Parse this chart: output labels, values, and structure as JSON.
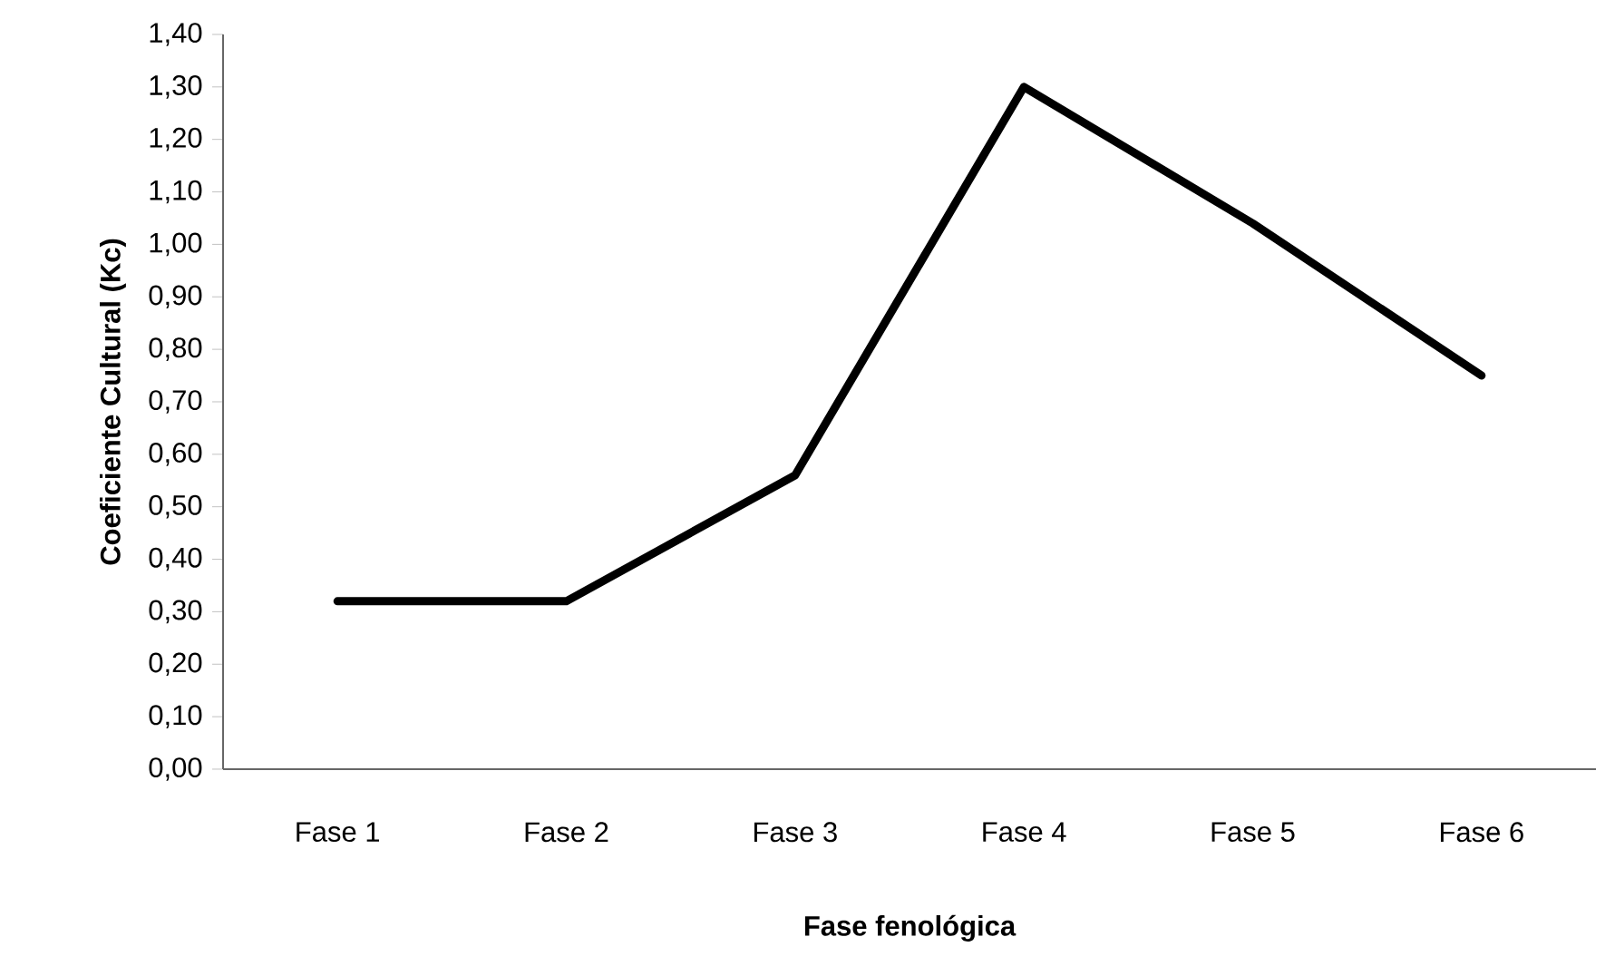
{
  "chart_data": {
    "type": "line",
    "xlabel": "Fase fenológica",
    "ylabel": "Coeficiente Cultural (Kc)",
    "categories": [
      "Fase 1",
      "Fase 2",
      "Fase 3",
      "Fase 4",
      "Fase 5",
      "Fase 6"
    ],
    "series": [
      {
        "color": "#000000",
        "values": [
          0.32,
          0.32,
          0.56,
          1.3,
          1.04,
          0.75
        ]
      }
    ],
    "ylim": [
      0,
      1.4
    ],
    "yticks": [
      {
        "value": 0,
        "label": "0,00"
      },
      {
        "value": 0.1,
        "label": "0,10"
      },
      {
        "value": 0.2,
        "label": "0,20"
      },
      {
        "value": 0.3,
        "label": "0,30"
      },
      {
        "value": 0.4,
        "label": "0,40"
      },
      {
        "value": 0.5,
        "label": "0,50"
      },
      {
        "value": 0.6,
        "label": "0,60"
      },
      {
        "value": 0.7,
        "label": "0,70"
      },
      {
        "value": 0.8,
        "label": "0,80"
      },
      {
        "value": 0.9,
        "label": "0,90"
      },
      {
        "value": 1.0,
        "label": "1,00"
      },
      {
        "value": 1.1,
        "label": "1,10"
      },
      {
        "value": 1.2,
        "label": "1,20"
      },
      {
        "value": 1.3,
        "label": "1,30"
      },
      {
        "value": 1.4,
        "label": "1,40"
      }
    ],
    "marker": "none",
    "line_style": "solid"
  }
}
